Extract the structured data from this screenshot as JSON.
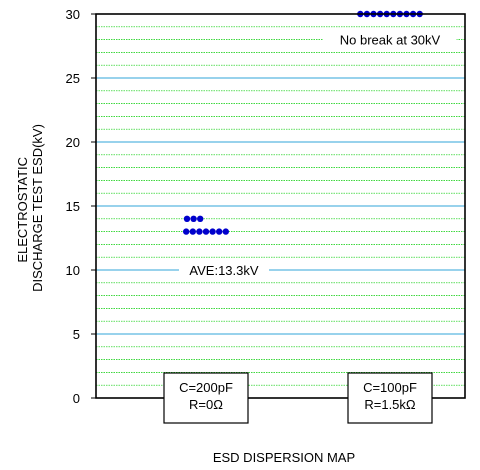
{
  "chart_data": {
    "type": "scatter",
    "title": "",
    "xlabel": "ESD DISPERSION MAP",
    "ylabel_lines": [
      "ELECTROSTATIC",
      "DISCHARGE TEST ESD(kV)"
    ],
    "ylim": [
      0,
      30
    ],
    "yticks": [
      0,
      5,
      10,
      15,
      20,
      25,
      30
    ],
    "grid": true,
    "grid_colors": {
      "major": "#5bb8e0",
      "minor": "#00cc00"
    },
    "point_color": "#0000cc",
    "categories": [
      {
        "lines": [
          "C=200pF",
          "R=0Ω"
        ]
      },
      {
        "lines": [
          "C=100pF",
          "R=1.5kΩ"
        ]
      }
    ],
    "series": [
      {
        "category_index": 0,
        "points": [
          {
            "y": 14,
            "count": 3
          },
          {
            "y": 13,
            "count": 7
          }
        ]
      },
      {
        "category_index": 1,
        "points": [
          {
            "y": 30,
            "count": 10
          }
        ]
      }
    ],
    "annotations": [
      {
        "text": "AVE:13.3kV",
        "y": 10,
        "category_index": 0
      },
      {
        "text": "No break at 30kV",
        "y": 28,
        "category_index": 1
      }
    ]
  }
}
